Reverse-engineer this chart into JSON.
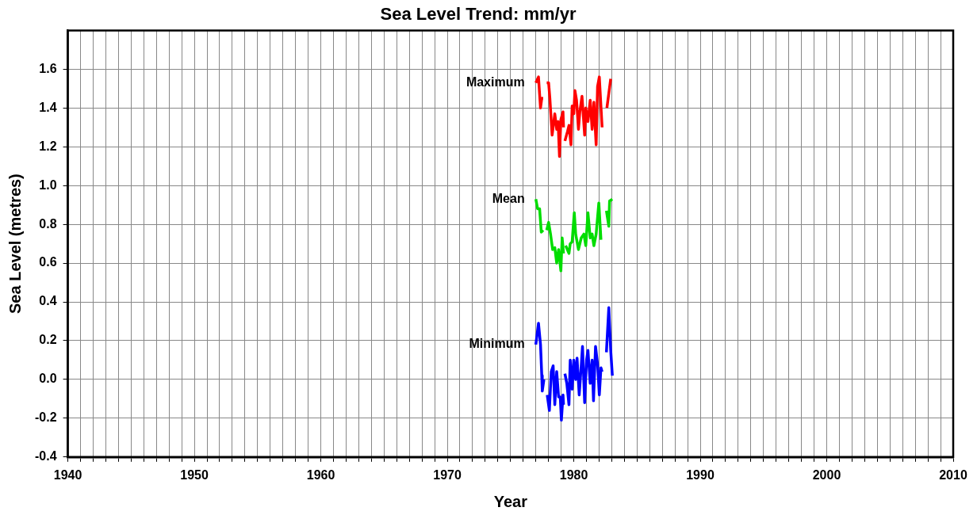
{
  "chart_data": {
    "type": "line",
    "title": "Sea Level Trend: mm/yr",
    "xlabel": "Year",
    "ylabel": "Sea Level (metres)",
    "grid": true,
    "legend": false,
    "marker": "none",
    "line_style": "solid",
    "xlim": [
      1940,
      2010
    ],
    "ylim": [
      -0.4,
      1.8
    ],
    "xticks": [
      1940,
      {
        "value": 1941,
        "label": null
      },
      {
        "value": 1942,
        "label": null
      },
      {
        "value": 1943,
        "label": null
      },
      {
        "value": 1944,
        "label": null
      },
      {
        "value": 1945,
        "label": null
      },
      {
        "value": 1946,
        "label": null
      },
      {
        "value": 1947,
        "label": null
      },
      {
        "value": 1948,
        "label": null
      },
      {
        "value": 1949,
        "label": null
      },
      1950,
      {
        "value": 1951,
        "label": null
      },
      {
        "value": 1952,
        "label": null
      },
      {
        "value": 1953,
        "label": null
      },
      {
        "value": 1954,
        "label": null
      },
      {
        "value": 1955,
        "label": null
      },
      {
        "value": 1956,
        "label": null
      },
      {
        "value": 1957,
        "label": null
      },
      {
        "value": 1958,
        "label": null
      },
      {
        "value": 1959,
        "label": null
      },
      1960,
      {
        "value": 1961,
        "label": null
      },
      {
        "value": 1962,
        "label": null
      },
      {
        "value": 1963,
        "label": null
      },
      {
        "value": 1964,
        "label": null
      },
      {
        "value": 1965,
        "label": null
      },
      {
        "value": 1966,
        "label": null
      },
      {
        "value": 1967,
        "label": null
      },
      {
        "value": 1968,
        "label": null
      },
      {
        "value": 1969,
        "label": null
      },
      1970,
      {
        "value": 1971,
        "label": null
      },
      {
        "value": 1972,
        "label": null
      },
      {
        "value": 1973,
        "label": null
      },
      {
        "value": 1974,
        "label": null
      },
      {
        "value": 1975,
        "label": null
      },
      {
        "value": 1976,
        "label": null
      },
      {
        "value": 1977,
        "label": null
      },
      {
        "value": 1978,
        "label": null
      },
      {
        "value": 1979,
        "label": null
      },
      1980,
      {
        "value": 1981,
        "label": null
      },
      {
        "value": 1982,
        "label": null
      },
      {
        "value": 1983,
        "label": null
      },
      {
        "value": 1984,
        "label": null
      },
      {
        "value": 1985,
        "label": null
      },
      {
        "value": 1986,
        "label": null
      },
      {
        "value": 1987,
        "label": null
      },
      {
        "value": 1988,
        "label": null
      },
      {
        "value": 1989,
        "label": null
      },
      1990,
      {
        "value": 1991,
        "label": null
      },
      {
        "value": 1992,
        "label": null
      },
      {
        "value": 1993,
        "label": null
      },
      {
        "value": 1994,
        "label": null
      },
      {
        "value": 1995,
        "label": null
      },
      {
        "value": 1996,
        "label": null
      },
      {
        "value": 1997,
        "label": null
      },
      {
        "value": 1998,
        "label": null
      },
      {
        "value": 1999,
        "label": null
      },
      2000,
      {
        "value": 2001,
        "label": null
      },
      {
        "value": 2002,
        "label": null
      },
      {
        "value": 2003,
        "label": null
      },
      {
        "value": 2004,
        "label": null
      },
      {
        "value": 2005,
        "label": null
      },
      {
        "value": 2006,
        "label": null
      },
      {
        "value": 2007,
        "label": null
      },
      {
        "value": 2008,
        "label": null
      },
      {
        "value": 2009,
        "label": null
      },
      2010
    ],
    "yticks": [
      {
        "value": -0.4,
        "label": "-0.4"
      },
      {
        "value": -0.2,
        "label": "-0.2"
      },
      {
        "value": 0,
        "label": "0.0"
      },
      {
        "value": 0.2,
        "label": "0.2"
      },
      {
        "value": 0.4,
        "label": "0.4"
      },
      {
        "value": 0.6,
        "label": "0.6"
      },
      {
        "value": 0.8,
        "label": "0.8"
      },
      {
        "value": 1,
        "label": "1.0"
      },
      {
        "value": 1.2,
        "label": "1.2"
      },
      {
        "value": 1.4,
        "label": "1.4"
      },
      {
        "value": 1.6,
        "label": "1.6"
      }
    ],
    "series": [
      {
        "name": "Maximum",
        "color": "#ff0000",
        "x": [
          1977.0,
          1977.21,
          1977.3,
          1977.37,
          1977.47,
          1977.58,
          1977.72,
          1977.86,
          1978.01,
          1978.11,
          1978.29,
          1978.5,
          1978.65,
          1978.76,
          1978.87,
          1978.98,
          1979.15,
          1979.19,
          1979.25,
          1979.3,
          1979.51,
          1979.62,
          1979.78,
          1979.87,
          1980.0,
          1980.09,
          1980.22,
          1980.37,
          1980.48,
          1980.65,
          1980.86,
          1980.95,
          1981.12,
          1981.3,
          1981.45,
          1981.59,
          1981.77,
          1981.88,
          1982.02,
          1982.24,
          1982.43,
          1982.62,
          1982.92
        ],
        "values": [
          1.53,
          1.56,
          1.47,
          1.4,
          1.45,
          1.45,
          null,
          1.53,
          1.53,
          1.45,
          1.26,
          1.37,
          1.29,
          1.33,
          1.15,
          1.34,
          1.38,
          1.3,
          null,
          1.23,
          1.28,
          1.31,
          1.21,
          1.41,
          1.37,
          1.49,
          1.44,
          1.29,
          1.38,
          1.46,
          1.26,
          1.4,
          1.33,
          1.44,
          1.29,
          1.43,
          1.21,
          1.51,
          1.56,
          1.3,
          null,
          1.4,
          1.55
        ]
      },
      {
        "name": "Mean",
        "color": "#00dd00",
        "x": [
          1977.0,
          1977.14,
          1977.3,
          1977.43,
          1977.58,
          1977.72,
          1977.86,
          1978.01,
          1978.16,
          1978.33,
          1978.5,
          1978.65,
          1978.8,
          1978.98,
          1979.08,
          1979.19,
          1979.28,
          1979.36,
          1979.62,
          1979.72,
          1979.87,
          1980.04,
          1980.15,
          1980.37,
          1980.59,
          1980.8,
          1980.95,
          1981.12,
          1981.3,
          1981.45,
          1981.59,
          1981.77,
          1981.98,
          1982.15,
          1982.37,
          1982.58,
          1982.77,
          1982.83,
          1983.05
        ],
        "values": [
          0.93,
          0.88,
          0.88,
          0.76,
          0.77,
          null,
          0.77,
          0.81,
          0.75,
          0.67,
          0.68,
          0.6,
          0.67,
          0.56,
          0.73,
          0.65,
          null,
          0.69,
          0.65,
          0.7,
          0.71,
          0.86,
          0.75,
          0.67,
          0.73,
          0.75,
          0.69,
          0.86,
          0.73,
          0.75,
          0.69,
          0.75,
          0.91,
          0.72,
          null,
          0.87,
          0.79,
          0.92,
          0.93
        ]
      },
      {
        "name": "Minimum",
        "color": "#0000ff",
        "x": [
          1977.0,
          1977.21,
          1977.37,
          1977.47,
          1977.51,
          1977.64,
          1977.77,
          1977.9,
          1978.07,
          1978.22,
          1978.37,
          1978.5,
          1978.65,
          1978.8,
          1978.93,
          1979.02,
          1979.15,
          1979.19,
          1979.25,
          1979.3,
          1979.45,
          1979.62,
          1979.72,
          1979.87,
          1980.0,
          1980.15,
          1980.26,
          1980.43,
          1980.59,
          1980.69,
          1980.86,
          1981.01,
          1981.12,
          1981.3,
          1981.45,
          1981.56,
          1981.72,
          1981.88,
          1982.02,
          1982.15,
          1982.24,
          1982.43,
          1982.58,
          1982.77,
          1982.92,
          1983.05
        ],
        "values": [
          0.18,
          0.29,
          0.18,
          0.02,
          -0.06,
          0.0,
          null,
          -0.08,
          -0.16,
          0.04,
          0.07,
          -0.13,
          0.04,
          -0.09,
          -0.09,
          -0.21,
          -0.08,
          -0.13,
          null,
          0.03,
          -0.02,
          -0.13,
          0.1,
          -0.05,
          0.1,
          0.0,
          0.11,
          -0.08,
          0.07,
          0.17,
          -0.12,
          0.1,
          0.15,
          -0.02,
          0.1,
          -0.11,
          0.17,
          0.08,
          -0.08,
          0.06,
          0.04,
          null,
          0.14,
          0.37,
          0.15,
          0.02
        ]
      }
    ]
  }
}
